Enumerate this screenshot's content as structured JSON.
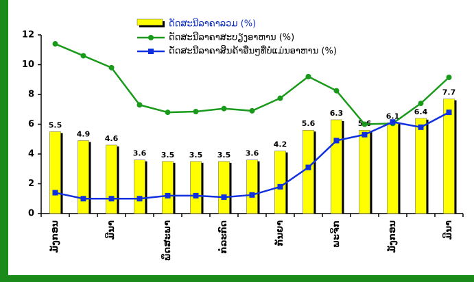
{
  "chart_data": {
    "type": "bar",
    "categories": [
      "ມັງກອນ",
      null,
      "ມີນາ",
      null,
      "ພຶດສະພາ",
      null,
      "ກໍລະກົດ",
      null,
      "ກັນຍາ",
      null,
      "ພະຈິກ",
      null,
      "ມັງກອນ",
      null,
      "ມີນາ"
    ],
    "series": [
      {
        "name": "ດັດສະນີລາຄາລວມ (%)",
        "type": "bar",
        "color": "#ffff00",
        "values": [
          5.5,
          4.9,
          4.6,
          3.6,
          3.5,
          3.5,
          3.5,
          3.6,
          4.2,
          5.6,
          6.3,
          5.6,
          6.1,
          6.4,
          7.7
        ]
      },
      {
        "name": "ດັດສະນີລາຄາສະບຽງອາຫານ (%)",
        "type": "line",
        "marker": "circle",
        "color": "#1a9a1a",
        "values": [
          11.4,
          10.6,
          9.8,
          7.3,
          6.8,
          6.85,
          7.05,
          6.9,
          7.75,
          9.2,
          8.25,
          6.0,
          6.05,
          7.4,
          9.15
        ]
      },
      {
        "name": "ດັດສະນີລາຄາສິນຄ້າອື່ນໆທີ່ບໍ່ແມ່ນອາຫານ (%)",
        "type": "line",
        "marker": "square",
        "color": "#1030e0",
        "values": [
          1.4,
          1.0,
          1.0,
          1.0,
          1.2,
          1.2,
          1.1,
          1.25,
          1.8,
          3.1,
          4.9,
          5.3,
          6.15,
          5.8,
          6.8
        ]
      }
    ],
    "ylim": [
      0,
      12
    ],
    "yticks": [
      0,
      2,
      4,
      6,
      8,
      10,
      12
    ]
  }
}
